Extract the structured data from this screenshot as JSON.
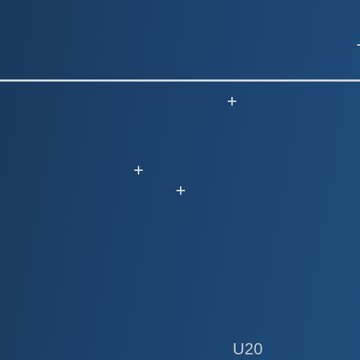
{
  "view": {
    "label": "U20",
    "marker_icon": "crosshair-plus-icon",
    "colors": {
      "background_start": "#1a3a5f",
      "background_end": "#1f4c7a",
      "line": "#d4d9de",
      "marker": "#d8dde3",
      "label": "#c8ced6"
    }
  }
}
